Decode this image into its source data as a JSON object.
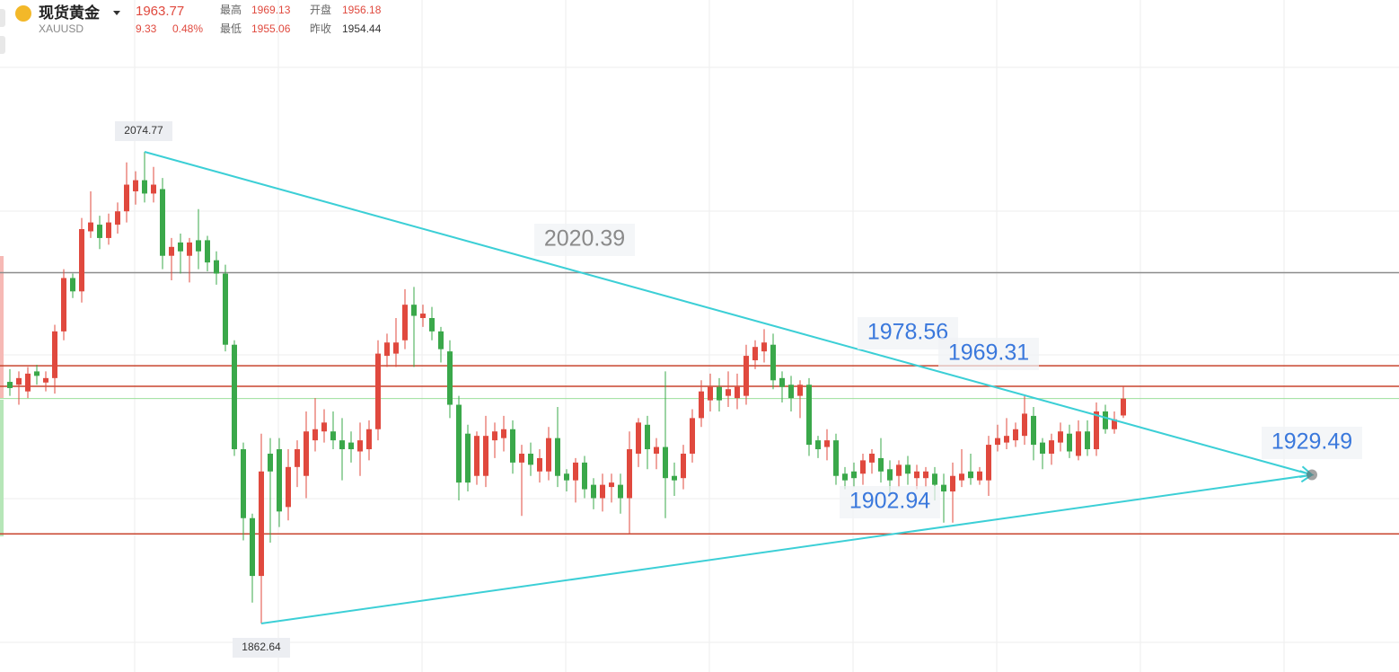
{
  "header": {
    "name": "现货黄金",
    "symbol": "XAUUSD",
    "price": 1963.77,
    "change": 9.33,
    "change_pct": "0.48%",
    "high_label": "最高",
    "high": 1969.13,
    "open_label": "开盘",
    "open": 1956.18,
    "low_label": "最低",
    "low": 1955.06,
    "prev_close_label": "昨收",
    "prev_close": 1954.44
  },
  "chart_data": {
    "type": "candlestick",
    "xlim": [
      -1.1,
      154.7
    ],
    "ylim": [
      1840.8,
      2143.05
    ],
    "up_color": "#e0493e",
    "down_color": "#3aa84a",
    "candles": {
      "open": [
        1971.3,
        1970,
        1967,
        1976,
        1971,
        1973,
        1994,
        2018,
        2012,
        2039,
        2042,
        2036,
        2042,
        2048,
        2057,
        2062,
        2056,
        2058,
        2028,
        2034,
        2028,
        2035,
        2035,
        2026,
        2020,
        1988,
        1941,
        1910,
        1884,
        1939,
        1941,
        1915,
        1933,
        1929,
        1945,
        1949,
        1949,
        1945,
        1944,
        1940,
        1941,
        1950,
        1983,
        1984,
        1990,
        2006,
        2000,
        2000,
        1994,
        1985,
        1961,
        1948,
        1929,
        1929,
        1945,
        1946,
        1950,
        1935,
        1939,
        1931,
        1931,
        1946,
        1930,
        1927,
        1935,
        1925,
        1919,
        1924,
        1925,
        1919,
        1939,
        1952,
        1939,
        1942,
        1929,
        1928,
        1939,
        1955,
        1963,
        1969,
        1965,
        1964,
        1965,
        1981,
        1985,
        1988,
        1973,
        1970,
        1965,
        1970,
        1945,
        1942,
        1945,
        1930,
        1931,
        1930,
        1935,
        1937,
        1932,
        1929,
        1934,
        1928,
        1928,
        1930,
        1925,
        1922,
        1927,
        1931,
        1927,
        1927,
        1943,
        1944,
        1945,
        1947,
        1956,
        1944,
        1939,
        1944,
        1948,
        1938,
        1949,
        1941,
        1958,
        1950
      ],
      "high": [
        1977,
        1976,
        1978,
        1979,
        1976,
        1997,
        2022,
        2020,
        2045,
        2057,
        2046,
        2047,
        2052,
        2070,
        2066,
        2074.77,
        2068,
        2063,
        2036,
        2038,
        2036,
        2049,
        2037,
        2030,
        2024,
        1990,
        1944,
        1912,
        1948,
        1946,
        1946,
        1941,
        1945,
        1958,
        1964,
        1959,
        1958,
        1955,
        1949,
        1953,
        1954,
        1990,
        1993,
        2000,
        2013,
        2014,
        2006,
        2005,
        1996,
        1990,
        1965,
        1952,
        1949,
        1956,
        1953,
        1956,
        1954,
        1943,
        1944,
        1941,
        1951,
        1960,
        1932,
        1937,
        1938,
        1928,
        1930,
        1930,
        1930,
        1949,
        1955,
        1956,
        1946,
        1976,
        1935,
        1943,
        1959,
        1972,
        1975,
        1973,
        1976,
        1975,
        1988,
        1990,
        1995,
        1993,
        1976,
        1974,
        1972,
        1973,
        1947,
        1950,
        1948,
        1933,
        1935,
        1939,
        1941,
        1946,
        1936,
        1936,
        1938,
        1934,
        1933,
        1933,
        1930,
        1935,
        1941,
        1939,
        1933,
        1947,
        1952,
        1955,
        1953,
        1965,
        1960,
        1946,
        1948,
        1953,
        1952,
        1954,
        1954,
        1962,
        1961,
        1958
      ],
      "low": [
        1965,
        1961,
        1964,
        1970,
        1967,
        1966,
        1990,
        2009,
        2007,
        2036,
        2031,
        2033,
        2038,
        2043,
        2051,
        2052,
        2052,
        2022,
        2017,
        2020,
        2016,
        2022,
        2021,
        2015,
        1985,
        1938,
        1900,
        1872,
        1862.64,
        1899,
        1906,
        1909,
        1924,
        1919,
        1940,
        1944,
        1941,
        1927,
        1935,
        1929,
        1936,
        1945,
        1978,
        1978,
        1986,
        1978,
        1996,
        1990,
        1980,
        1955,
        1918,
        1922,
        1925,
        1924,
        1937,
        1940,
        1930,
        1911,
        1929,
        1926,
        1927,
        1924,
        1922,
        1917,
        1919,
        1914,
        1913,
        1917,
        1912,
        1903,
        1933,
        1932,
        1932,
        1910,
        1920,
        1923,
        1935,
        1951,
        1958,
        1958,
        1960,
        1959,
        1961,
        1977,
        1980,
        1968,
        1962,
        1958,
        1955,
        1938,
        1937,
        1936,
        1925,
        1923,
        1924,
        1925,
        1930,
        1926,
        1921,
        1924,
        1925,
        1923,
        1924,
        1918,
        1908,
        1908,
        1924,
        1925,
        1925,
        1920,
        1940,
        1941,
        1942,
        1943,
        1936,
        1932,
        1934,
        1940,
        1937,
        1936,
        1938,
        1938,
        1948,
        1948
      ],
      "close": [
        1968.5,
        1973,
        1975,
        1974,
        1973,
        1994,
        2018,
        2012,
        2040,
        2043,
        2036,
        2043,
        2048,
        2060,
        2062,
        2056,
        2060,
        2028,
        2032,
        2030,
        2034,
        2030,
        2025,
        2020,
        1988,
        1941,
        1910,
        1884,
        1931,
        1931,
        1913,
        1933,
        1941,
        1949,
        1950,
        1953,
        1945,
        1941,
        1941,
        1945,
        1950,
        1984,
        1989,
        1989,
        2006,
        2001,
        2002,
        1994,
        1986,
        1961,
        1926,
        1926,
        1947,
        1947,
        1949,
        1950,
        1935,
        1939,
        1934,
        1937,
        1946,
        1929,
        1927,
        1935,
        1923,
        1919,
        1925,
        1926,
        1919,
        1941,
        1953,
        1941,
        1942,
        1928,
        1927,
        1939,
        1955,
        1967,
        1969,
        1963,
        1968,
        1969,
        1983,
        1987,
        1989,
        1972,
        1969,
        1964,
        1970,
        1943,
        1941,
        1945,
        1929,
        1927,
        1928,
        1936,
        1939,
        1931,
        1927,
        1934,
        1930,
        1931,
        1931,
        1925,
        1922,
        1929,
        1930,
        1928,
        1931,
        1943,
        1946,
        1947,
        1950,
        1957,
        1943,
        1939,
        1945,
        1949,
        1940,
        1949,
        1941,
        1958,
        1950,
        1954.44
      ]
    },
    "horizontal_lines": [
      {
        "value": 2020.39,
        "color": "#8c8c8c"
      },
      {
        "value": 1978.56,
        "color": "#c8442e"
      },
      {
        "value": 1969.31,
        "color": "#c8442e"
      },
      {
        "value": 1902.94,
        "color": "#c8442e"
      }
    ],
    "trend_lines": [
      {
        "x": [
          15,
          145
        ],
        "y": [
          2074.77,
          1929.49
        ]
      },
      {
        "x": [
          28,
          145
        ],
        "y": [
          1862.64,
          1929.49
        ]
      }
    ],
    "trend_color": "#3ccfd6"
  }
}
